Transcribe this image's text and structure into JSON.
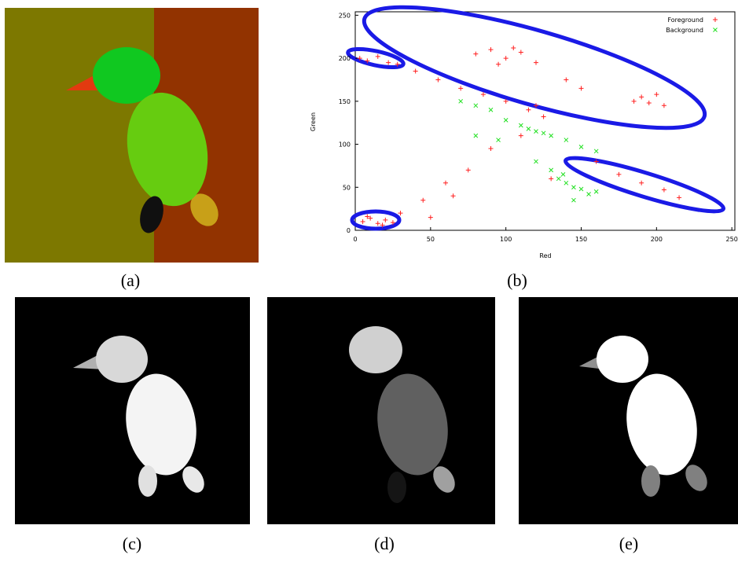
{
  "panel_labels": [
    "(a)",
    "(b)",
    "(c)",
    "(d)",
    "(e)"
  ],
  "chart_data": {
    "type": "scatter",
    "xlabel": "Red",
    "ylabel": "Green",
    "xlim": [
      0,
      252
    ],
    "ylim": [
      0,
      254
    ],
    "xticks": [
      0,
      50,
      100,
      150,
      200,
      250
    ],
    "yticks": [
      0,
      50,
      100,
      150,
      200,
      250
    ],
    "legend": "upper right",
    "series": [
      {
        "name": "Foreground",
        "color": "#ff2020",
        "marker": "+",
        "x": [
          5,
          10,
          15,
          20,
          25,
          8,
          18,
          3,
          8,
          15,
          22,
          28,
          40,
          55,
          70,
          85,
          100,
          115,
          125,
          80,
          90,
          100,
          110,
          120,
          95,
          105,
          185,
          190,
          195,
          200,
          205,
          160,
          175,
          190,
          205,
          215,
          30,
          45,
          60,
          75,
          90,
          110,
          130,
          50,
          65,
          140,
          150,
          120
        ],
        "values": [
          10,
          14,
          8,
          12,
          9,
          16,
          6,
          200,
          197,
          202,
          195,
          193,
          185,
          175,
          165,
          158,
          150,
          140,
          132,
          205,
          210,
          200,
          207,
          195,
          193,
          212,
          150,
          155,
          148,
          158,
          145,
          80,
          65,
          55,
          47,
          38,
          20,
          35,
          55,
          70,
          95,
          110,
          60,
          15,
          40,
          175,
          165,
          145
        ]
      },
      {
        "name": "Background",
        "color": "#20e020",
        "marker": "x",
        "x": [
          70,
          80,
          90,
          100,
          110,
          115,
          120,
          125,
          130,
          140,
          150,
          160,
          120,
          130,
          135,
          140,
          145,
          150,
          155,
          160,
          145,
          138,
          80,
          95
        ],
        "values": [
          150,
          145,
          140,
          128,
          122,
          118,
          115,
          113,
          110,
          105,
          97,
          92,
          80,
          70,
          60,
          55,
          50,
          48,
          42,
          45,
          35,
          65,
          110,
          105
        ]
      }
    ]
  }
}
